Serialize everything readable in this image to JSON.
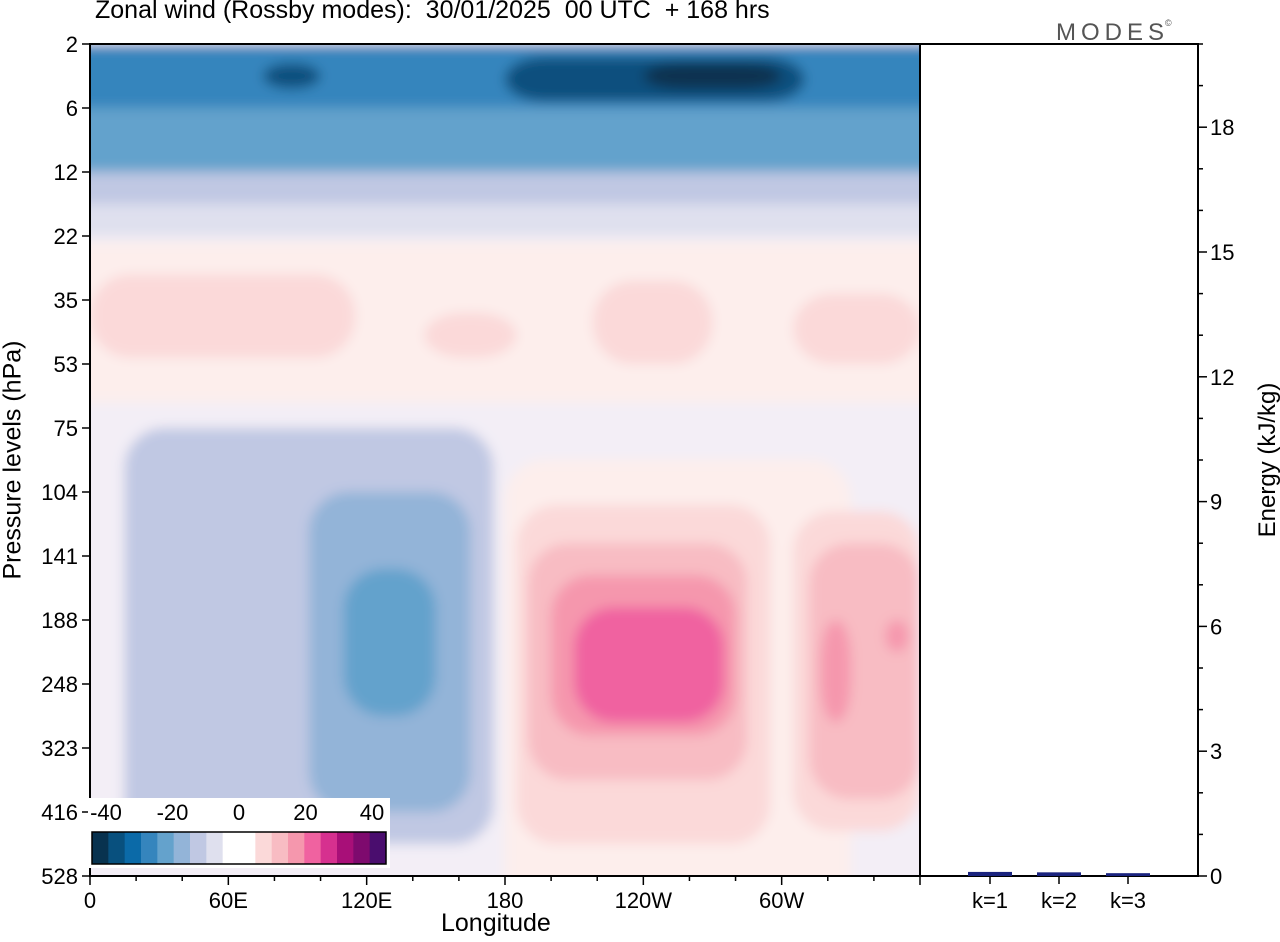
{
  "title": "Zonal wind (Rossby modes):  30/01/2025  00 UTC  + 168 hrs",
  "logo": {
    "text": "MODES",
    "mark": "©"
  },
  "colors": {
    "neg": [
      "#08324f",
      "#08507e",
      "#0b6aa8",
      "#3585bd",
      "#64a2cc",
      "#93b4d8",
      "#c0c8e3",
      "#dfe0ee",
      "#f3eef6"
    ],
    "neg_levels": [
      -40,
      -35,
      -30,
      -25,
      -20,
      -15,
      -10,
      -5,
      0
    ],
    "pos": [
      "#fdeeec",
      "#fbd9d9",
      "#f8bcc3",
      "#f597ad",
      "#f062a0",
      "#d6308f",
      "#a80f78",
      "#7e0a6e",
      "#4a0d6e"
    ],
    "pos_levels": [
      0,
      5,
      10,
      15,
      20,
      25,
      30,
      35,
      40
    ],
    "bar": "#1a237e"
  },
  "chart_data": [
    {
      "type": "heatmap",
      "title": "Zonal wind (Rossby modes):  30/01/2025  00 UTC  + 168 hrs",
      "xlabel": "Longitude",
      "ylabel": "Pressure levels (hPa)",
      "x_ticks": [
        "0",
        "60E",
        "120E",
        "180",
        "120W",
        "60W"
      ],
      "y_ticks": [
        "2",
        "6",
        "12",
        "22",
        "35",
        "53",
        "75",
        "104",
        "141",
        "188",
        "248",
        "323",
        "416",
        "528"
      ],
      "xlim": [
        0,
        360
      ],
      "colorbar": {
        "labels": [
          "-40",
          "-20",
          "0",
          "20",
          "40"
        ],
        "range": [
          -40,
          40
        ],
        "step": 5
      },
      "regions": [
        {
          "lon": [
            0,
            360
          ],
          "lev": [
            0,
            1
          ],
          "value": -22
        },
        {
          "lon": [
            180,
            310
          ],
          "lev": [
            0.2,
            0.9
          ],
          "value": -32
        },
        {
          "lon": [
            240,
            300
          ],
          "lev": [
            0.3,
            0.7
          ],
          "value": -37
        },
        {
          "lon": [
            75,
            100
          ],
          "lev": [
            0.3,
            0.7
          ],
          "value": -32
        },
        {
          "lon": [
            0,
            360
          ],
          "lev": [
            1,
            2
          ],
          "value": -16
        },
        {
          "lon": [
            0,
            360
          ],
          "lev": [
            2,
            2.5
          ],
          "value": -9
        },
        {
          "lon": [
            0,
            360
          ],
          "lev": [
            2.5,
            3
          ],
          "value": -4
        },
        {
          "lon": [
            0,
            360
          ],
          "lev": [
            3.1,
            5.6
          ],
          "value": 3
        },
        {
          "lon": [
            0,
            115
          ],
          "lev": [
            3.6,
            4.9
          ],
          "value": 7
        },
        {
          "lon": [
            145,
            185
          ],
          "lev": [
            4.2,
            4.9
          ],
          "value": 7
        },
        {
          "lon": [
            218,
            270
          ],
          "lev": [
            3.7,
            5.0
          ],
          "value": 7
        },
        {
          "lon": [
            305,
            360
          ],
          "lev": [
            3.9,
            5.0
          ],
          "value": 7
        },
        {
          "lon": [
            15,
            175
          ],
          "lev": [
            6.0,
            12.5
          ],
          "value": -6
        },
        {
          "lon": [
            95,
            165
          ],
          "lev": [
            7.0,
            12.0
          ],
          "value": -12
        },
        {
          "lon": [
            110,
            150
          ],
          "lev": [
            8.2,
            10.5
          ],
          "value": -17
        },
        {
          "lon": [
            180,
            330
          ],
          "lev": [
            6.5,
            14
          ],
          "value": 3
        },
        {
          "lon": [
            185,
            295
          ],
          "lev": [
            7.2,
            12.5
          ],
          "value": 8
        },
        {
          "lon": [
            190,
            285
          ],
          "lev": [
            7.8,
            11.5
          ],
          "value": 12
        },
        {
          "lon": [
            200,
            280
          ],
          "lev": [
            8.3,
            10.8
          ],
          "value": 17
        },
        {
          "lon": [
            210,
            275
          ],
          "lev": [
            8.8,
            10.6
          ],
          "value": 22
        },
        {
          "lon": [
            305,
            360
          ],
          "lev": [
            7.3,
            12.3
          ],
          "value": 8
        },
        {
          "lon": [
            312,
            360
          ],
          "lev": [
            7.8,
            11.8
          ],
          "value": 12
        },
        {
          "lon": [
            317,
            330
          ],
          "lev": [
            9.0,
            10.6
          ],
          "value": 17
        },
        {
          "lon": [
            345,
            355
          ],
          "lev": [
            9.0,
            9.5
          ],
          "value": 17
        }
      ]
    },
    {
      "type": "bar",
      "ylabel": "Energy (kJ/kg)",
      "categories": [
        "k=1",
        "k=2",
        "k=3"
      ],
      "values": [
        0.05,
        0.04,
        0.02
      ],
      "ylim": [
        0,
        20
      ],
      "y_ticks": [
        0,
        3,
        6,
        9,
        12,
        15,
        18
      ]
    }
  ]
}
